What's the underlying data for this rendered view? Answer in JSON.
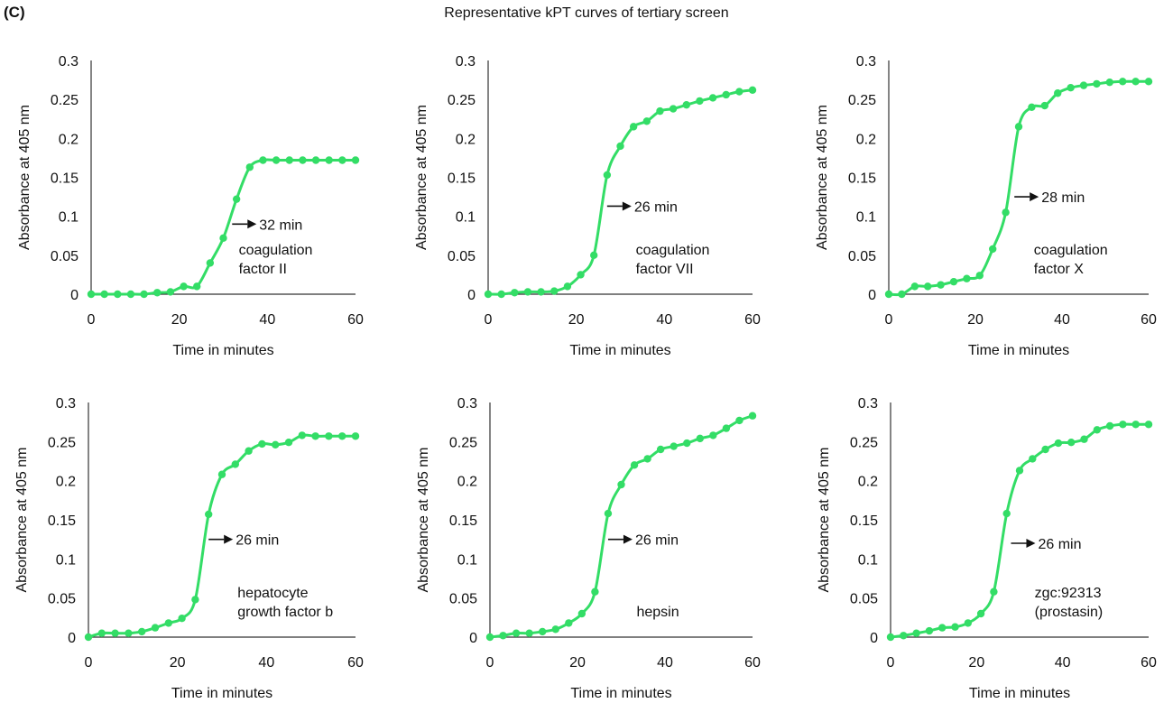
{
  "panel_label": "(C)",
  "figure_title": "Representative kPT curves of tertiary screen",
  "colors": {
    "series": "#33dd66",
    "axis": "#333333",
    "arrow": "#111111"
  },
  "chart_data": [
    {
      "type": "line",
      "xlabel": "Time in minutes",
      "ylabel": "Absorbance at 405 nm",
      "xlim": [
        0,
        60
      ],
      "ylim": [
        0,
        0.3
      ],
      "xticks": [
        "0",
        "20",
        "40",
        "60"
      ],
      "yticks": [
        "0",
        "0.05",
        "0.1",
        "0.15",
        "0.2",
        "0.25",
        "0.3"
      ],
      "label_lines": [
        "coagulation",
        "factor II"
      ],
      "arrow_label": "32 min",
      "arrow_at": [
        32,
        0.09
      ],
      "series": [
        {
          "x": [
            0,
            3,
            6,
            9,
            12,
            15,
            18,
            21,
            24,
            27,
            30,
            33,
            36,
            39,
            42,
            45,
            48,
            51,
            54,
            57,
            60
          ],
          "y": [
            0,
            0,
            0,
            0,
            0,
            0.002,
            0.003,
            0.01,
            0.01,
            0.04,
            0.072,
            0.122,
            0.163,
            0.172,
            0.172,
            0.172,
            0.172,
            0.172,
            0.172,
            0.172,
            0.172
          ]
        }
      ]
    },
    {
      "type": "line",
      "xlabel": "Time in minutes",
      "ylabel": "Absorbance at 405 nm",
      "xlim": [
        0,
        60
      ],
      "ylim": [
        0,
        0.3
      ],
      "xticks": [
        "0",
        "20",
        "40",
        "60"
      ],
      "yticks": [
        "0",
        "0.05",
        "0.1",
        "0.15",
        "0.2",
        "0.25",
        "0.3"
      ],
      "label_lines": [
        "coagulation",
        "factor VII"
      ],
      "arrow_label": "26 min",
      "arrow_at": [
        27,
        0.113
      ],
      "series": [
        {
          "x": [
            0,
            3,
            6,
            9,
            12,
            15,
            18,
            21,
            24,
            27,
            30,
            33,
            36,
            39,
            42,
            45,
            48,
            51,
            54,
            57,
            60
          ],
          "y": [
            0,
            0,
            0.002,
            0.003,
            0.003,
            0.004,
            0.01,
            0.025,
            0.05,
            0.153,
            0.19,
            0.215,
            0.222,
            0.235,
            0.238,
            0.243,
            0.248,
            0.252,
            0.256,
            0.26,
            0.262
          ]
        }
      ]
    },
    {
      "type": "line",
      "xlabel": "Time in minutes",
      "ylabel": "Absorbance at 405 nm",
      "xlim": [
        0,
        60
      ],
      "ylim": [
        0,
        0.3
      ],
      "xticks": [
        "0",
        "20",
        "40",
        "60"
      ],
      "yticks": [
        "0",
        "0.05",
        "0.1",
        "0.15",
        "0.2",
        "0.25",
        "0.3"
      ],
      "label_lines": [
        "coagulation",
        "factor X"
      ],
      "arrow_label": "28 min",
      "arrow_at": [
        29,
        0.125
      ],
      "series": [
        {
          "x": [
            0,
            3,
            6,
            9,
            12,
            15,
            18,
            21,
            24,
            27,
            30,
            33,
            36,
            39,
            42,
            45,
            48,
            51,
            54,
            57,
            60
          ],
          "y": [
            0,
            0,
            0.01,
            0.01,
            0.012,
            0.016,
            0.02,
            0.024,
            0.058,
            0.105,
            0.215,
            0.24,
            0.242,
            0.258,
            0.265,
            0.268,
            0.27,
            0.272,
            0.273,
            0.273,
            0.273
          ]
        }
      ]
    },
    {
      "type": "line",
      "xlabel": "Time in minutes",
      "ylabel": "Absorbance at 405 nm",
      "xlim": [
        0,
        60
      ],
      "ylim": [
        0,
        0.3
      ],
      "xticks": [
        "0",
        "20",
        "40",
        "60"
      ],
      "yticks": [
        "0",
        "0.05",
        "0.1",
        "0.15",
        "0.2",
        "0.25",
        "0.3"
      ],
      "label_lines": [
        "hepatocyte",
        "growth factor b"
      ],
      "arrow_label": "26 min",
      "arrow_at": [
        27,
        0.125
      ],
      "series": [
        {
          "x": [
            0,
            3,
            6,
            9,
            12,
            15,
            18,
            21,
            24,
            27,
            30,
            33,
            36,
            39,
            42,
            45,
            48,
            51,
            54,
            57,
            60
          ],
          "y": [
            0,
            0.005,
            0.005,
            0.005,
            0.007,
            0.012,
            0.018,
            0.024,
            0.048,
            0.157,
            0.208,
            0.221,
            0.238,
            0.247,
            0.246,
            0.249,
            0.258,
            0.257,
            0.257,
            0.257,
            0.257
          ]
        }
      ]
    },
    {
      "type": "line",
      "xlabel": "Time in minutes",
      "ylabel": "Absorbance at 405 nm",
      "xlim": [
        0,
        60
      ],
      "ylim": [
        0,
        0.3
      ],
      "xticks": [
        "0",
        "20",
        "40",
        "60"
      ],
      "yticks": [
        "0",
        "0.05",
        "0.1",
        "0.15",
        "0.2",
        "0.25",
        "0.3"
      ],
      "label_lines": [
        "hepsin"
      ],
      "arrow_label": "26 min",
      "arrow_at": [
        27,
        0.125
      ],
      "series": [
        {
          "x": [
            0,
            3,
            6,
            9,
            12,
            15,
            18,
            21,
            24,
            27,
            30,
            33,
            36,
            39,
            42,
            45,
            48,
            51,
            54,
            57,
            60
          ],
          "y": [
            0,
            0.002,
            0.005,
            0.005,
            0.007,
            0.01,
            0.018,
            0.03,
            0.058,
            0.158,
            0.195,
            0.22,
            0.228,
            0.24,
            0.244,
            0.248,
            0.254,
            0.258,
            0.267,
            0.277,
            0.283
          ]
        }
      ]
    },
    {
      "type": "line",
      "xlabel": "Time in minutes",
      "ylabel": "Absorbance at 405 nm",
      "xlim": [
        0,
        60
      ],
      "ylim": [
        0,
        0.3
      ],
      "xticks": [
        "0",
        "20",
        "40",
        "60"
      ],
      "yticks": [
        "0",
        "0.05",
        "0.1",
        "0.15",
        "0.2",
        "0.25",
        "0.3"
      ],
      "label_lines": [
        "zgc:92313",
        "(prostasin)"
      ],
      "arrow_label": "26 min",
      "arrow_at": [
        28,
        0.12
      ],
      "series": [
        {
          "x": [
            0,
            3,
            6,
            9,
            12,
            15,
            18,
            21,
            24,
            27,
            30,
            33,
            36,
            39,
            42,
            45,
            48,
            51,
            54,
            57,
            60
          ],
          "y": [
            0,
            0.002,
            0.005,
            0.008,
            0.012,
            0.013,
            0.018,
            0.03,
            0.058,
            0.158,
            0.213,
            0.228,
            0.24,
            0.248,
            0.249,
            0.253,
            0.265,
            0.27,
            0.272,
            0.272,
            0.272
          ]
        }
      ]
    }
  ]
}
